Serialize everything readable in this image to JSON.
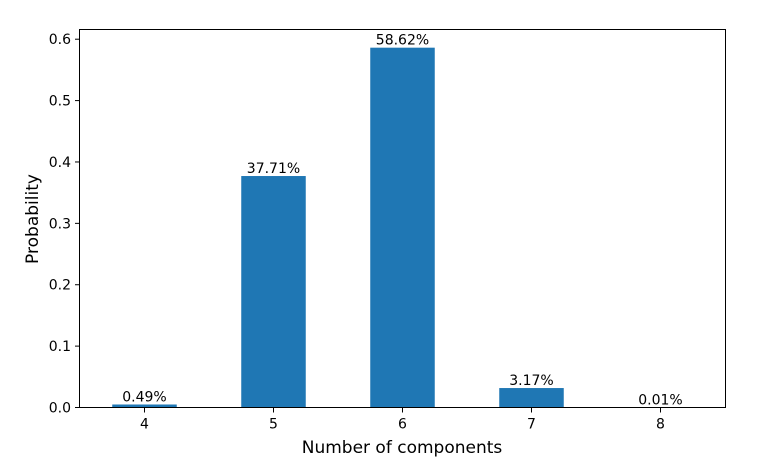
{
  "chart_data": {
    "type": "bar",
    "categories": [
      "4",
      "5",
      "6",
      "7",
      "8"
    ],
    "values": [
      0.0049,
      0.3771,
      0.5862,
      0.0317,
      0.0001
    ],
    "data_labels": [
      "0.49%",
      "37.71%",
      "58.62%",
      "3.17%",
      "0.01%"
    ],
    "xlabel": "Number of components",
    "ylabel": "Probability",
    "ylim": [
      0,
      0.615
    ],
    "yticks": [
      {
        "value": 0.0,
        "label": "0.0"
      },
      {
        "value": 0.1,
        "label": "0.1"
      },
      {
        "value": 0.2,
        "label": "0.2"
      },
      {
        "value": 0.3,
        "label": "0.3"
      },
      {
        "value": 0.4,
        "label": "0.4"
      },
      {
        "value": 0.5,
        "label": "0.5"
      },
      {
        "value": 0.6,
        "label": "0.6"
      }
    ],
    "grid": false,
    "bar_color": "#1f77b4"
  }
}
